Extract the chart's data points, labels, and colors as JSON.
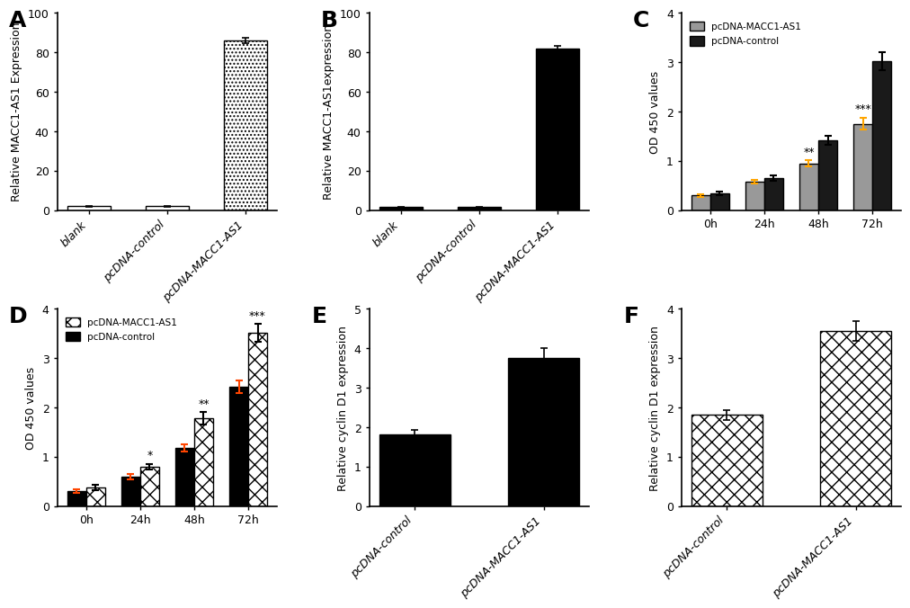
{
  "panel_A": {
    "categories": [
      "blank",
      "pcDNA-control",
      "pcDNA-MACC1-AS1"
    ],
    "values": [
      2.0,
      2.0,
      86.0
    ],
    "errors": [
      0.3,
      0.3,
      1.5
    ],
    "ylabel": "Relative MACC1-AS1 Expression",
    "ylim": [
      0,
      100
    ],
    "yticks": [
      0,
      20,
      40,
      60,
      80,
      100
    ],
    "bar_colors": [
      "white",
      "white",
      "white"
    ],
    "bar_edgecolors": [
      "black",
      "black",
      "black"
    ],
    "hatch": [
      "",
      "",
      "...."
    ]
  },
  "panel_B": {
    "categories": [
      "blank",
      "pcDNA-control",
      "pcDNA-MACC1-AS1"
    ],
    "values": [
      1.5,
      1.5,
      82.0
    ],
    "errors": [
      0.3,
      0.3,
      1.5
    ],
    "ylabel": "Relative MACC1-AS1expression",
    "ylim": [
      0,
      100
    ],
    "yticks": [
      0,
      20,
      40,
      60,
      80,
      100
    ],
    "bar_colors": [
      "black",
      "black",
      "black"
    ],
    "hatch": [
      "",
      "",
      ""
    ]
  },
  "panel_C": {
    "time_points": [
      "0h",
      "24h",
      "48h",
      "72h"
    ],
    "grey_values": [
      0.3,
      0.58,
      0.95,
      1.75
    ],
    "grey_errors": [
      0.03,
      0.04,
      0.06,
      0.12
    ],
    "black_values": [
      0.34,
      0.65,
      1.42,
      3.02
    ],
    "black_errors": [
      0.04,
      0.05,
      0.09,
      0.18
    ],
    "ylabel": "OD 450 values",
    "ylim": [
      0,
      4
    ],
    "yticks": [
      0,
      1,
      2,
      3,
      4
    ],
    "legend_labels": [
      "pcDNA-MACC1-AS1",
      "pcDNA-control"
    ],
    "annotations_right": {
      "48h": "**",
      "72h": "***"
    }
  },
  "panel_D": {
    "time_points": [
      "0h",
      "24h",
      "48h",
      "72h"
    ],
    "black_values": [
      0.3,
      0.6,
      1.18,
      2.42
    ],
    "black_errors": [
      0.04,
      0.05,
      0.08,
      0.12
    ],
    "checker_values": [
      0.38,
      0.8,
      1.78,
      3.52
    ],
    "checker_errors": [
      0.05,
      0.06,
      0.12,
      0.18
    ],
    "ylabel": "OD 450 values",
    "ylim": [
      0,
      4
    ],
    "yticks": [
      0,
      1,
      2,
      3,
      4
    ],
    "legend_labels": [
      "pcDNA-MACC1-AS1",
      "pcDNA-control"
    ],
    "annotations_right": {
      "24h": "*",
      "48h": "**",
      "72h": "***"
    }
  },
  "panel_E": {
    "categories": [
      "pcDNA-control",
      "pcDNA-MACC1-AS1"
    ],
    "values": [
      1.82,
      3.75
    ],
    "errors": [
      0.1,
      0.25
    ],
    "ylabel": "Relative cyclin D1 expression",
    "ylim": [
      0,
      5
    ],
    "yticks": [
      0,
      1,
      2,
      3,
      4,
      5
    ],
    "bar_colors": [
      "black",
      "black"
    ],
    "hatch": [
      "",
      ""
    ]
  },
  "panel_F": {
    "categories": [
      "pcDNA-control",
      "pcDNA-MACC1-AS1"
    ],
    "values": [
      1.85,
      3.55
    ],
    "errors": [
      0.1,
      0.2
    ],
    "ylabel": "Relative cyclin D1 expression",
    "ylim": [
      0,
      4
    ],
    "yticks": [
      0,
      1,
      2,
      3,
      4
    ],
    "bar_colors": [
      "white",
      "white"
    ],
    "hatch": [
      "xx",
      "xx"
    ]
  },
  "figure_bg": "#ffffff",
  "orange": "#FFA500",
  "red_orange": "#FF4500",
  "tick_fontsize": 9,
  "ylabel_fontsize": 9,
  "panel_label_fontsize": 18
}
